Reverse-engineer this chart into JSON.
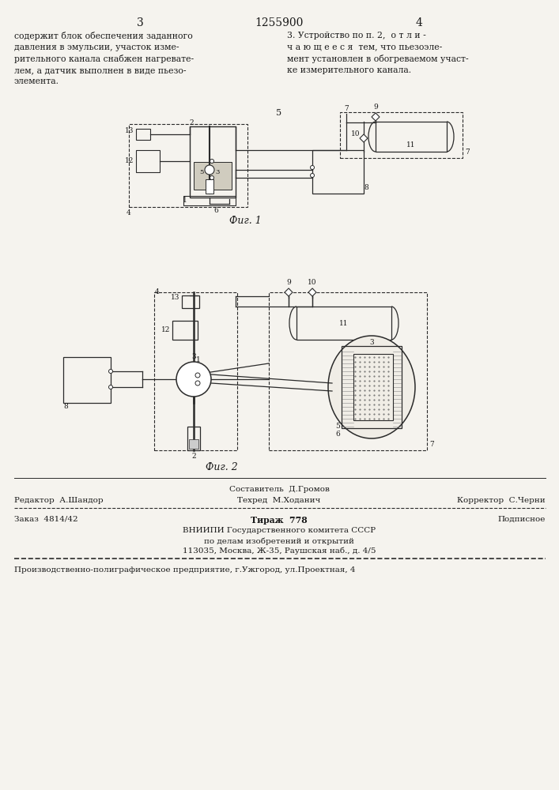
{
  "bg_color": "#f5f3ee",
  "page_width": 7.07,
  "page_height": 10.0,
  "header_patent_num": "1255900",
  "header_col_left": "3",
  "header_col_right": "4",
  "text_left": "содержит блок обеспечения заданного\nдавления в эмульсии, участок изме-\nрительного канала снабжен нагревате-\nлем, а датчик выполнен в виде пьезо-\nэлемента.",
  "text_right": "3. Устройство по п. 2,  о т л и -\nч а ю щ е е с я  тем, что пьезоэле-\nмент установлен в обогреваемом участ-\nке измерительного канала.",
  "num5": "5",
  "fig1_caption": "Фиг. 1",
  "fig2_caption": "Фиг. 2",
  "footer_composer": "Составитель  Д.Громов",
  "footer_editor": "Редактор  А.Шандор",
  "footer_techred": "Техред  М.Ходанич",
  "footer_corrector": "Корректор  С.Черни",
  "footer_order": "Заказ  4814/42",
  "footer_tiraz": "Тираж  778",
  "footer_podpisnoe": "Подписное",
  "footer_vniigi": "ВНИИПИ Государственного комитета СССР",
  "footer_vniigi2": "по делам изобретений и открытий",
  "footer_vniigi3": "113035, Москва, Ж-35, Раушская наб., д. 4/5",
  "footer_prod": "Производственно-полиграфическое предприятие, г.Ужгород, ул.Проектная, 4",
  "text_color": "#1a1a1a",
  "line_color": "#2a2a2a"
}
